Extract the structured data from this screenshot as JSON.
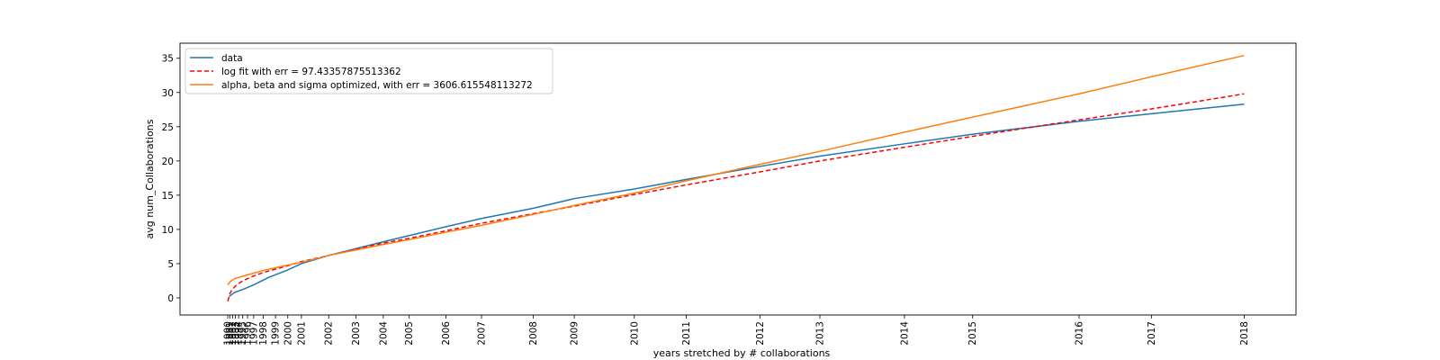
{
  "chart_data": {
    "type": "line",
    "title": "",
    "xlabel": "years stretched by # collaborations",
    "ylabel": "avg num_Collaborations",
    "ylim": [
      -2.5,
      37.2
    ],
    "yticks": [
      0,
      5,
      10,
      15,
      20,
      25,
      30,
      35
    ],
    "x_tick_labels": [
      "1990",
      "1991",
      "1992",
      "1993",
      "1994",
      "1995",
      "1996",
      "1997",
      "1998",
      "1999",
      "2000",
      "2001",
      "2002",
      "2003",
      "2004",
      "2005",
      "2006",
      "2007",
      "2008",
      "2009",
      "2010",
      "2011",
      "2012",
      "2013",
      "2014",
      "2015",
      "2016",
      "2017",
      "2018"
    ],
    "x_tick_values": [
      0.0,
      0.15,
      0.35,
      0.55,
      0.8,
      1.1,
      1.45,
      1.9,
      2.6,
      3.5,
      4.4,
      5.4,
      7.4,
      9.4,
      11.4,
      13.3,
      16.0,
      18.6,
      22.4,
      25.4,
      29.8,
      33.6,
      39.0,
      43.4,
      49.6,
      54.6,
      62.4,
      67.7,
      74.5
    ],
    "xlim": [
      -3.5,
      78.3
    ],
    "legend_position": "upper-left",
    "grid": false,
    "series": [
      {
        "name": "data",
        "color": "#1f77b4",
        "dash": "solid",
        "x": [
          0.1,
          0.5,
          1.2,
          2.0,
          3.0,
          4.3,
          5.4,
          7.4,
          9.4,
          11.4,
          13.3,
          16.0,
          18.6,
          22.4,
          25.4,
          29.8,
          33.6,
          39.0,
          43.4,
          49.6,
          54.6,
          62.4,
          67.7,
          74.5
        ],
        "y": [
          0.2,
          0.8,
          1.3,
          2.0,
          3.0,
          4.0,
          5.0,
          6.2,
          7.2,
          8.2,
          9.1,
          10.4,
          11.6,
          13.1,
          14.5,
          15.9,
          17.3,
          19.2,
          20.7,
          22.5,
          23.9,
          25.8,
          26.9,
          28.3
        ]
      },
      {
        "name": "log fit with err = 97.43357875513362",
        "color": "#ff0000",
        "dash": "dashed",
        "x": [
          0.0,
          0.15,
          0.35,
          0.55,
          0.8,
          1.1,
          1.45,
          1.9,
          2.6,
          3.5,
          4.4,
          5.4,
          7.4,
          9.4,
          11.4,
          13.3,
          16.0,
          18.6,
          22.4,
          25.4,
          29.8,
          33.6,
          39.0,
          43.4,
          49.6,
          54.6,
          62.4,
          67.7,
          74.5
        ],
        "y": [
          -0.5,
          0.6,
          1.3,
          1.7,
          2.1,
          2.5,
          2.8,
          3.2,
          3.7,
          4.2,
          4.7,
          5.3,
          6.2,
          7.1,
          8.0,
          8.7,
          9.8,
          10.9,
          12.3,
          13.4,
          15.1,
          16.5,
          18.4,
          20.0,
          22.0,
          23.6,
          26.0,
          27.6,
          29.8
        ]
      },
      {
        "name": "alpha, beta and sigma optimized, with err = 3606.615548113272",
        "color": "#ff7f0e",
        "dash": "solid",
        "x": [
          0.0,
          0.2,
          0.5,
          1.0,
          1.7,
          2.6,
          3.5,
          4.4,
          5.4,
          7.4,
          9.4,
          11.4,
          13.3,
          16.0,
          18.6,
          22.4,
          25.4,
          29.8,
          33.6,
          39.0,
          43.4,
          49.6,
          54.6,
          62.4,
          67.7,
          74.5
        ],
        "y": [
          1.9,
          2.4,
          2.8,
          3.1,
          3.5,
          4.0,
          4.4,
          4.8,
          5.2,
          6.2,
          7.0,
          7.8,
          8.5,
          9.6,
          10.6,
          12.2,
          13.5,
          15.3,
          17.1,
          19.5,
          21.4,
          24.2,
          26.4,
          29.8,
          32.3,
          35.4
        ]
      }
    ]
  }
}
